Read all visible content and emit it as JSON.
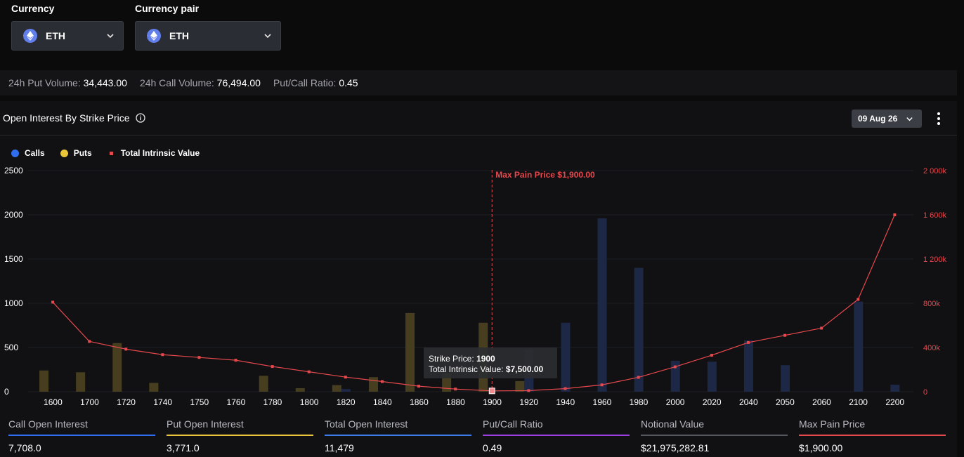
{
  "currency": {
    "label": "Currency",
    "value": "ETH",
    "icon": "ethereum-icon"
  },
  "currency_pair": {
    "label": "Currency pair",
    "value": "ETH",
    "icon": "ethereum-icon"
  },
  "stats": {
    "put_volume_label": "24h Put Volume:",
    "put_volume": "34,443.00",
    "call_volume_label": "24h Call Volume:",
    "call_volume": "76,494.00",
    "ratio_label": "Put/Call Ratio:",
    "ratio": "0.45"
  },
  "panel": {
    "title": "Open Interest By Strike Price",
    "expiry": "09 Aug 26"
  },
  "legend": {
    "calls": "Calls",
    "puts": "Puts",
    "intrinsic": "Total Intrinsic Value"
  },
  "colors": {
    "calls": "#2f6fed",
    "puts": "#e8c53a",
    "intrinsic": "#e5484d",
    "total": "#3f7be8",
    "ratio": "#9b3fe0",
    "notional": "#55585f"
  },
  "chart_data": {
    "type": "bar",
    "categories": [
      "1600",
      "1700",
      "1720",
      "1740",
      "1750",
      "1760",
      "1780",
      "1800",
      "1820",
      "1840",
      "1860",
      "1880",
      "1900",
      "1920",
      "1940",
      "1960",
      "1980",
      "2000",
      "2020",
      "2040",
      "2050",
      "2060",
      "2100",
      "2200"
    ],
    "series": [
      {
        "name": "Calls",
        "type": "bar",
        "axis": "left",
        "values": [
          0,
          0,
          0,
          0,
          0,
          0,
          0,
          0,
          30,
          0,
          0,
          0,
          0,
          480,
          780,
          1960,
          1400,
          350,
          340,
          580,
          300,
          0,
          1020,
          80
        ]
      },
      {
        "name": "Puts",
        "type": "bar",
        "axis": "left",
        "values": [
          240,
          220,
          550,
          100,
          0,
          0,
          180,
          40,
          75,
          165,
          890,
          210,
          780,
          120,
          0,
          0,
          0,
          0,
          0,
          0,
          0,
          0,
          0,
          0
        ]
      },
      {
        "name": "Total Intrinsic Value",
        "type": "line",
        "axis": "right",
        "values": [
          810000,
          455000,
          385000,
          335000,
          310000,
          285000,
          228000,
          180000,
          132000,
          92000,
          50000,
          24000,
          7500,
          10000,
          28000,
          62000,
          130000,
          225000,
          330000,
          445000,
          510000,
          575000,
          835000,
          1600000
        ]
      }
    ],
    "y_left": {
      "ticks": [
        "0",
        "500",
        "1000",
        "1500",
        "2000",
        "2500"
      ],
      "ylim": [
        0,
        2500
      ]
    },
    "y_right": {
      "ticks": [
        "0",
        "400k",
        "800k",
        "1 200k",
        "1 600k",
        "2 000k"
      ],
      "ylim": [
        0,
        2000000
      ]
    },
    "max_pain": {
      "label": "Max Pain Price $1,900.00",
      "category": "1900"
    },
    "tooltip": {
      "strike_label": "Strike Price:",
      "strike": "1900",
      "value_label": "Total Intrinsic Value:",
      "value": "$7,500.00"
    }
  },
  "summary": [
    {
      "label": "Call Open Interest",
      "value": "7,708.0",
      "color": "#2f6fed"
    },
    {
      "label": "Put Open Interest",
      "value": "3,771.0",
      "color": "#e8c53a"
    },
    {
      "label": "Total Open Interest",
      "value": "11,479",
      "color": "#3f7be8"
    },
    {
      "label": "Put/Call Ratio",
      "value": "0.49",
      "color": "#9b3fe0"
    },
    {
      "label": "Notional Value",
      "value": "$21,975,282.81",
      "color": "#55585f"
    },
    {
      "label": "Max Pain Price",
      "value": "$1,900.00",
      "color": "#e5484d"
    }
  ]
}
